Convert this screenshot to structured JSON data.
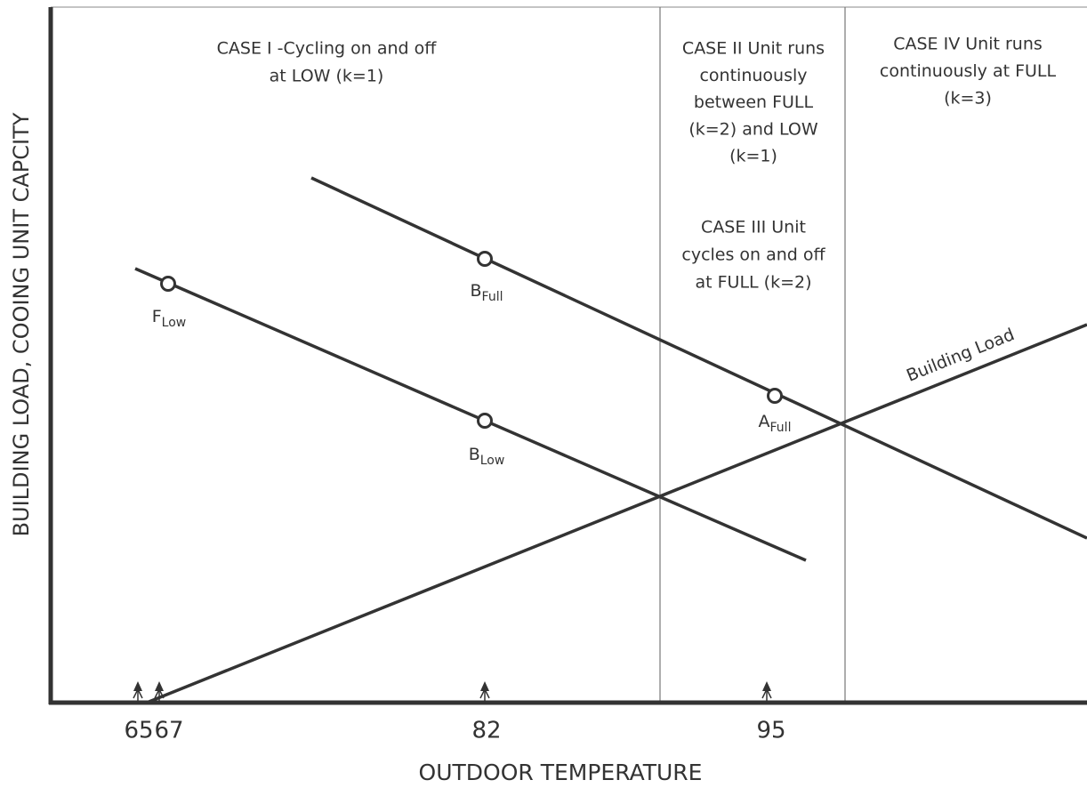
{
  "regions": [
    {
      "lines": [
        "CASE I -Cycling on and off",
        "at LOW (k=1)"
      ]
    },
    {
      "lines": [
        "CASE II Unit runs",
        "continuously",
        "between FULL",
        "(k=2) and LOW",
        "(k=1)"
      ]
    },
    {
      "lines": [
        "CASE III Unit",
        "cycles on and off",
        "at FULL (k=2)"
      ]
    },
    {
      "lines": [
        "CASE IV Unit runs",
        "continuously at FULL",
        "(k=3)"
      ]
    }
  ],
  "points": [
    {
      "main": "F",
      "sub": "Low"
    },
    {
      "main": "B",
      "sub": "Full"
    },
    {
      "main": "B",
      "sub": "Low"
    },
    {
      "main": "A",
      "sub": "Full"
    }
  ],
  "line_label": "Building Load",
  "x_ticks": [
    "65",
    "67",
    "82",
    "95"
  ],
  "x_axis_label": "OUTDOOR TEMPERATURE",
  "y_axis_label": "BUILDING LOAD, COOING UNIT CAPCITY"
}
